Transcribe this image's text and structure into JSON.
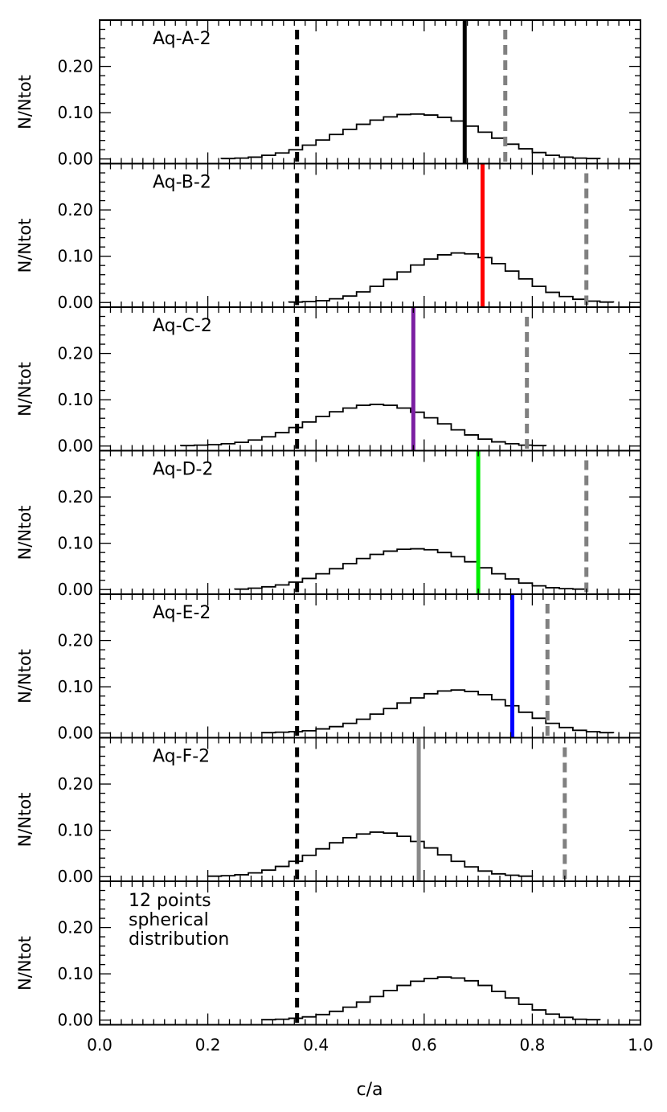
{
  "figure": {
    "xlabel": "c/a",
    "ylabel": "N/Ntot",
    "x_tick_labels": [
      "0.0",
      "0.2",
      "0.4",
      "0.6",
      "0.8",
      "1.0"
    ],
    "y_tick_labels": [
      "0.00",
      "0.10",
      "0.20"
    ]
  },
  "chart_data": {
    "type": "histogram",
    "xlim": [
      0.0,
      1.0
    ],
    "ylim": [
      -0.01,
      0.3
    ],
    "x_ticks": [
      0.0,
      0.2,
      0.4,
      0.6,
      0.8,
      1.0
    ],
    "y_ticks": [
      0.0,
      0.1,
      0.2
    ],
    "common_reference_line": {
      "x": 0.365,
      "style": "dashed",
      "color": "#000000"
    },
    "bin_width": 0.025,
    "panels": [
      {
        "label": "Aq-A-2",
        "line_color": "#000000",
        "solid_line_x": 0.675,
        "dashed_line_x": 0.75,
        "dashed_color": "#808080",
        "bins_start": 0.225,
        "values": [
          0.001,
          0.002,
          0.004,
          0.008,
          0.013,
          0.02,
          0.03,
          0.041,
          0.053,
          0.064,
          0.075,
          0.084,
          0.091,
          0.096,
          0.097,
          0.095,
          0.09,
          0.082,
          0.071,
          0.058,
          0.045,
          0.032,
          0.022,
          0.014,
          0.008,
          0.004,
          0.002,
          0.001
        ]
      },
      {
        "label": "Aq-B-2",
        "line_color": "#ff0000",
        "solid_line_x": 0.708,
        "dashed_line_x": 0.9,
        "dashed_color": "#808080",
        "bins_start": 0.35,
        "values": [
          0.001,
          0.002,
          0.004,
          0.008,
          0.014,
          0.023,
          0.035,
          0.05,
          0.066,
          0.081,
          0.094,
          0.103,
          0.107,
          0.105,
          0.097,
          0.084,
          0.068,
          0.051,
          0.035,
          0.022,
          0.013,
          0.007,
          0.003,
          0.001
        ]
      },
      {
        "label": "Aq-C-2",
        "line_color": "#7b1fa2",
        "solid_line_x": 0.58,
        "dashed_line_x": 0.79,
        "dashed_color": "#808080",
        "bins_start": 0.15,
        "values": [
          0.001,
          0.002,
          0.003,
          0.005,
          0.008,
          0.013,
          0.02,
          0.029,
          0.04,
          0.052,
          0.064,
          0.074,
          0.082,
          0.088,
          0.09,
          0.088,
          0.082,
          0.073,
          0.061,
          0.048,
          0.035,
          0.024,
          0.015,
          0.009,
          0.005,
          0.002,
          0.001
        ]
      },
      {
        "label": "Aq-D-2",
        "line_color": "#00ee00",
        "solid_line_x": 0.7,
        "dashed_line_x": 0.9,
        "dashed_color": "#808080",
        "bins_start": 0.25,
        "values": [
          0.001,
          0.003,
          0.006,
          0.01,
          0.016,
          0.024,
          0.034,
          0.045,
          0.056,
          0.067,
          0.076,
          0.083,
          0.087,
          0.088,
          0.086,
          0.08,
          0.071,
          0.06,
          0.047,
          0.034,
          0.023,
          0.014,
          0.008,
          0.004,
          0.002,
          0.001
        ]
      },
      {
        "label": "Aq-E-2",
        "line_color": "#0000ff",
        "solid_line_x": 0.763,
        "dashed_line_x": 0.828,
        "dashed_color": "#808080",
        "bins_start": 0.3,
        "values": [
          0.001,
          0.002,
          0.003,
          0.005,
          0.009,
          0.014,
          0.021,
          0.03,
          0.041,
          0.053,
          0.065,
          0.076,
          0.085,
          0.091,
          0.093,
          0.09,
          0.083,
          0.072,
          0.059,
          0.045,
          0.032,
          0.021,
          0.012,
          0.006,
          0.003,
          0.001
        ]
      },
      {
        "label": "Aq-F-2",
        "line_color": "#888888",
        "solid_line_x": 0.59,
        "dashed_line_x": 0.86,
        "dashed_color": "#808080",
        "bins_start": 0.2,
        "values": [
          0.001,
          0.002,
          0.004,
          0.008,
          0.014,
          0.022,
          0.033,
          0.046,
          0.06,
          0.073,
          0.084,
          0.092,
          0.096,
          0.094,
          0.087,
          0.076,
          0.062,
          0.047,
          0.033,
          0.021,
          0.012,
          0.006,
          0.003,
          0.001
        ]
      },
      {
        "label_lines": [
          "12 points",
          "spherical",
          "distribution"
        ],
        "line_color": null,
        "solid_line_x": null,
        "dashed_line_x": null,
        "dashed_color": null,
        "bins_start": 0.3,
        "values": [
          0.001,
          0.002,
          0.004,
          0.007,
          0.012,
          0.019,
          0.028,
          0.039,
          0.051,
          0.064,
          0.075,
          0.084,
          0.09,
          0.093,
          0.091,
          0.085,
          0.075,
          0.062,
          0.048,
          0.034,
          0.022,
          0.013,
          0.006,
          0.002,
          0.001
        ]
      }
    ]
  }
}
